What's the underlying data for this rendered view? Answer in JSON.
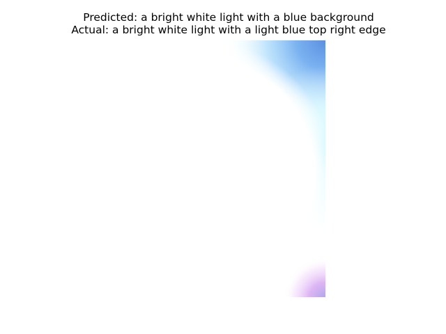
{
  "title": {
    "predicted": "Predicted: a bright white light with a blue background",
    "actual": "Actual: a bright white light with a light blue top right edge"
  },
  "image": {
    "description_icon": "bright-light-photo",
    "colors": {
      "core": "#ffffff",
      "top_right_blue": "#5b8fe0",
      "sky_blue": "#86c4f5",
      "cyan_glow": "#d8fbff",
      "bottom_pink": "#e8a6f0",
      "bottom_purple": "#a9a6ea"
    }
  }
}
